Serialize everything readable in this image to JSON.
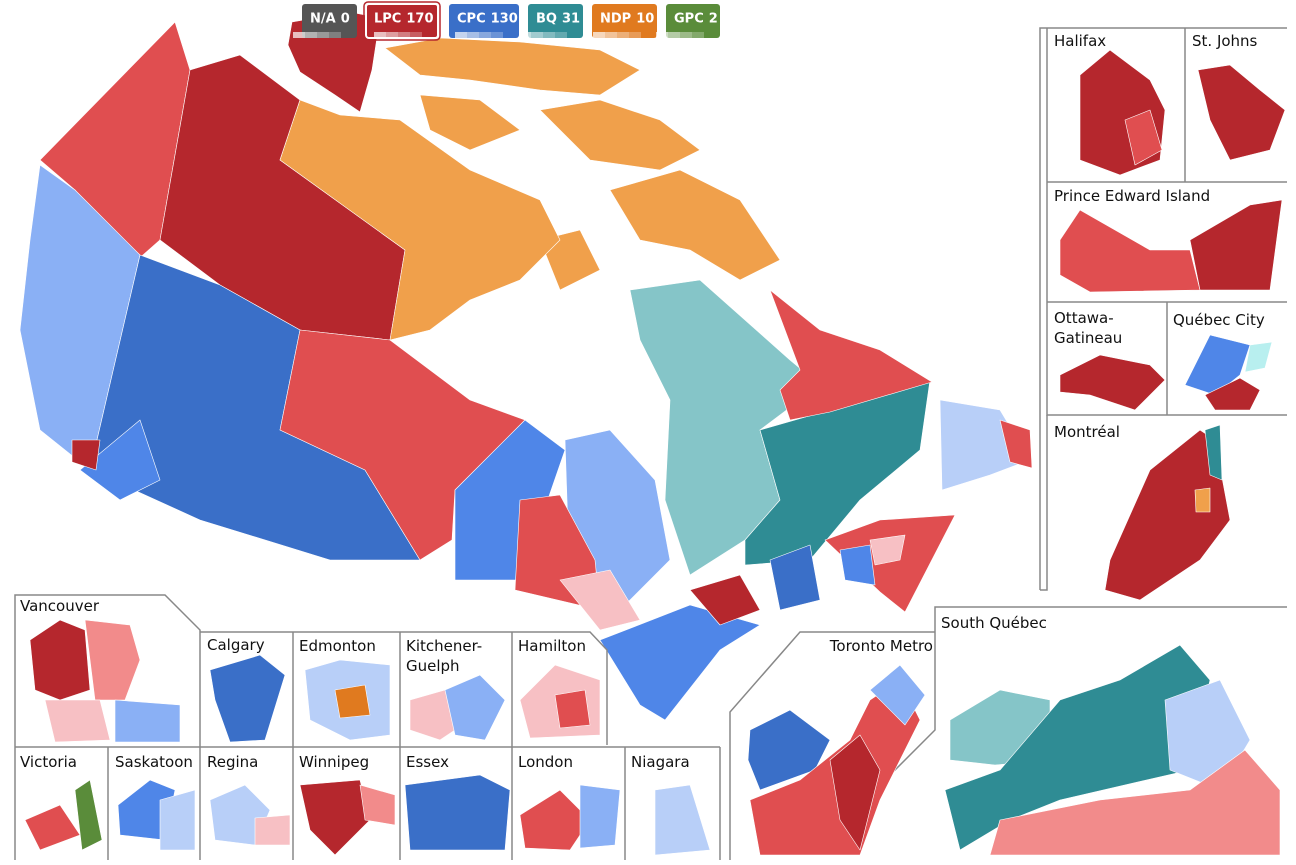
{
  "legend": {
    "parties": [
      {
        "name": "N/A",
        "seats": 0,
        "color": "#555555"
      },
      {
        "name": "LPC",
        "seats": 170,
        "color": "#b5272d"
      },
      {
        "name": "CPC",
        "seats": 130,
        "color": "#3a6fc8"
      },
      {
        "name": "BQ",
        "seats": 31,
        "color": "#2f8c94"
      },
      {
        "name": "NDP",
        "seats": 10,
        "color": "#e07a1f"
      },
      {
        "name": "GPC",
        "seats": 2,
        "color": "#5a8c3a"
      }
    ]
  },
  "insets": {
    "halifax": "Halifax",
    "st_johns": "St. Johns",
    "pei": "Prince Edward Island",
    "ottawa": [
      "Ottawa-",
      "Gatineau"
    ],
    "quebec_city": "Québec City",
    "montreal": "Montréal",
    "south_quebec": "South Québec",
    "toronto": "Toronto Metro",
    "vancouver": "Vancouver",
    "calgary": "Calgary",
    "edmonton": "Edmonton",
    "kitchener": [
      "Kitchener-",
      "Guelph"
    ],
    "hamilton": "Hamilton",
    "victoria": "Victoria",
    "saskatoon": "Saskatoon",
    "regina": "Regina",
    "winnipeg": "Winnipeg",
    "essex": "Essex",
    "london": "London",
    "niagara": "Niagara"
  }
}
